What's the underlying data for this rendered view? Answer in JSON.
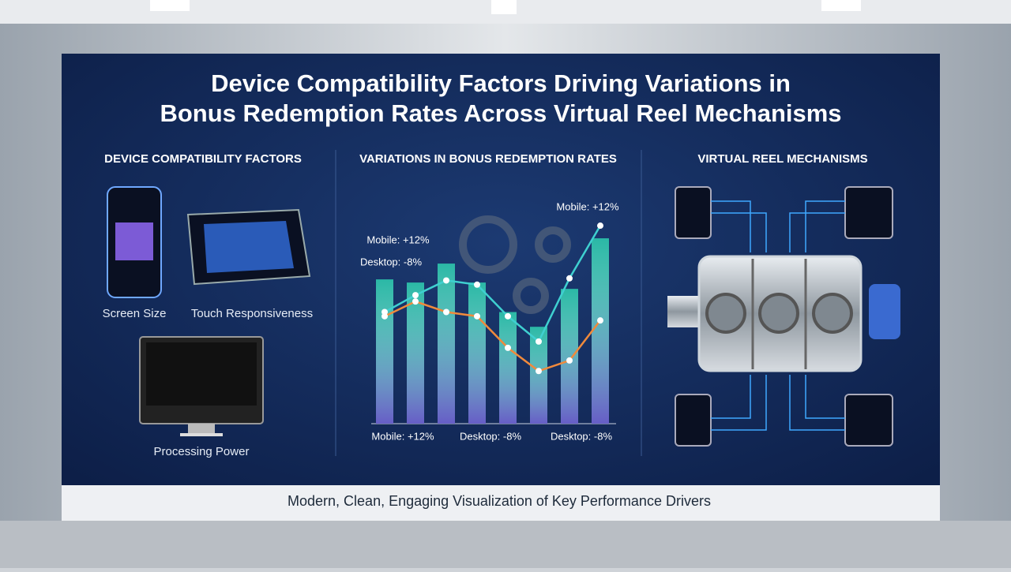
{
  "title_lines": [
    "Device Compatibility Factors Driving Variations in",
    "Bonus Redemption Rates Across Virtual Reel Mechanisms"
  ],
  "panels": [
    {
      "heading": "DEVICE COMPATIBILITY FACTORS",
      "items": [
        "Screen Size",
        "Touch Responsiveness",
        "Processing Power"
      ]
    },
    {
      "heading": "VARIATIONS IN BONUS REDEMPTION RATES"
    },
    {
      "heading": "VIRTUAL REEL MECHANISMS"
    }
  ],
  "chart_data": {
    "type": "bar",
    "categories": [
      null,
      null,
      null,
      null,
      null,
      null,
      null,
      null
    ],
    "values": [
      68.5,
      67,
      76,
      67,
      53,
      46,
      64,
      88
    ],
    "color": "#2bb8a6",
    "lines": [
      {
        "color": "#f08a3c",
        "values": [
          51,
          58,
          53,
          51,
          36,
          25,
          30,
          49
        ]
      },
      {
        "color": "#3fd0d0",
        "values": [
          53,
          61,
          68,
          66,
          51,
          39,
          69,
          94
        ]
      }
    ],
    "annotations": [
      "Mobile: +12%",
      "Desktop: -8%",
      "Mobile: +12%"
    ],
    "x_labels": [
      "Mobile: +12%",
      "Desktop: -8%",
      "Desktop: -8%"
    ]
  },
  "footer": "Modern, Clean, Engaging Visualization of Key Performance Drivers"
}
